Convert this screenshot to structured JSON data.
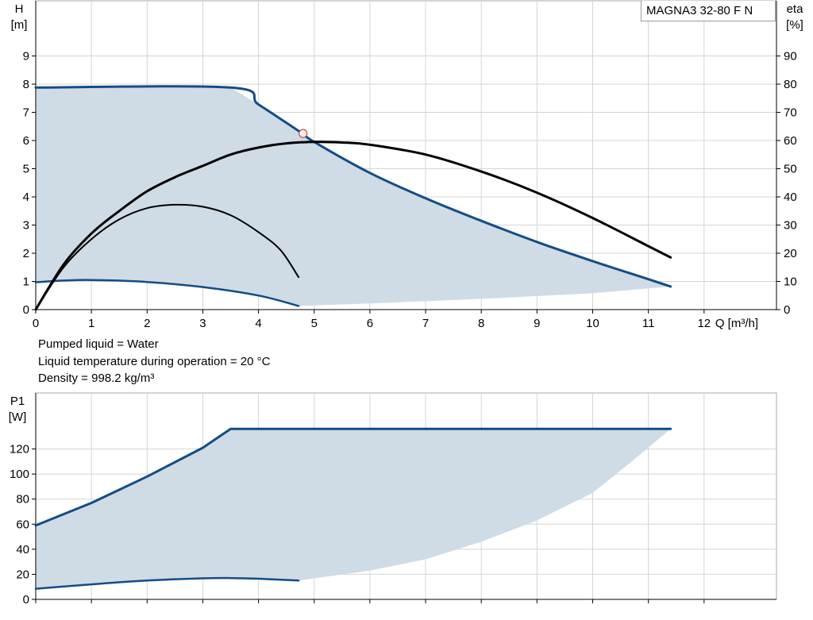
{
  "model": "MAGNA3 32-80 F N",
  "notes": [
    "Pumped liquid = Water",
    "Liquid temperature during operation = 20 °C",
    "Density = 998.2 kg/m³"
  ],
  "colors": {
    "curve": "#124d86",
    "area": "#cfdbe5",
    "eta": "#000000",
    "grid": "#d4d4d4",
    "frame": "#a8a8a8",
    "duty_marker": "#e23a3a"
  },
  "chart_data": [
    {
      "type": "line",
      "name": "head-chart",
      "xlabel": "Q [m³/h]",
      "ylabel": "H\n[m]",
      "y2label": "eta\n[%]",
      "x_ticks": [
        0,
        1,
        2,
        3,
        4,
        5,
        6,
        7,
        8,
        9,
        10,
        11,
        12
      ],
      "y_ticks": [
        0,
        1,
        2,
        3,
        4,
        5,
        6,
        7,
        8,
        9
      ],
      "y2_ticks": [
        0,
        10,
        20,
        30,
        40,
        50,
        60,
        70,
        80,
        90
      ],
      "xlim": [
        0,
        13.3
      ],
      "ylim": [
        0,
        10
      ],
      "y2lim": [
        0,
        100
      ],
      "grid": true,
      "series": [
        {
          "axis": "left",
          "width": 3,
          "points": [
            [
              0,
              7.88
            ],
            [
              3.5,
              7.88
            ],
            [
              4,
              7.28
            ],
            [
              4.75,
              6.3
            ],
            [
              5,
              5.95
            ],
            [
              6,
              4.85
            ],
            [
              7,
              3.95
            ],
            [
              8,
              3.15
            ],
            [
              9,
              2.4
            ],
            [
              10,
              1.72
            ],
            [
              11,
              1.08
            ],
            [
              11.4,
              0.82
            ]
          ]
        },
        {
          "axis": "left",
          "width": 2.5,
          "points": [
            [
              0,
              0.97
            ],
            [
              0.5,
              1.03
            ],
            [
              1,
              1.05
            ],
            [
              2,
              0.98
            ],
            [
              3,
              0.8
            ],
            [
              4,
              0.5
            ],
            [
              4.72,
              0.13
            ]
          ]
        },
        {
          "axis": "right",
          "width": 3,
          "points": [
            [
              0,
              0
            ],
            [
              0.5,
              16
            ],
            [
              1,
              27
            ],
            [
              1.5,
              35
            ],
            [
              2,
              42
            ],
            [
              2.5,
              47
            ],
            [
              3,
              51
            ],
            [
              3.5,
              55
            ],
            [
              4,
              57.5
            ],
            [
              4.5,
              59
            ],
            [
              5,
              59.5
            ],
            [
              5.5,
              59.3
            ],
            [
              6,
              58.5
            ],
            [
              7,
              55
            ],
            [
              8,
              49
            ],
            [
              9,
              41.5
            ],
            [
              10,
              32.5
            ],
            [
              11,
              22.5
            ],
            [
              11.4,
              18.5
            ]
          ]
        },
        {
          "axis": "right",
          "width": 2,
          "points": [
            [
              0,
              0
            ],
            [
              0.5,
              15
            ],
            [
              1,
              25
            ],
            [
              1.5,
              32
            ],
            [
              2,
              36
            ],
            [
              2.5,
              37.2
            ],
            [
              3,
              36.5
            ],
            [
              3.5,
              33.5
            ],
            [
              4,
              27.5
            ],
            [
              4.4,
              21
            ],
            [
              4.72,
              11.5
            ]
          ]
        }
      ],
      "operating_area": {
        "upper": [
          [
            0,
            7.88
          ],
          [
            3.5,
            7.88
          ],
          [
            4,
            7.28
          ],
          [
            4.75,
            6.3
          ],
          [
            5,
            5.95
          ],
          [
            6,
            4.85
          ],
          [
            7,
            3.95
          ],
          [
            8,
            3.15
          ],
          [
            9,
            2.4
          ],
          [
            10,
            1.72
          ],
          [
            11,
            1.08
          ],
          [
            11.4,
            0.82
          ]
        ],
        "lower": [
          [
            0,
            0.97
          ],
          [
            0.5,
            1.03
          ],
          [
            1,
            1.05
          ],
          [
            2,
            0.98
          ],
          [
            3,
            0.8
          ],
          [
            4,
            0.5
          ],
          [
            4.72,
            0.13
          ],
          [
            6,
            0.22
          ],
          [
            8,
            0.38
          ],
          [
            10,
            0.58
          ],
          [
            11.4,
            0.82
          ]
        ]
      },
      "duty_point": [
        4.8,
        6.25
      ]
    },
    {
      "type": "line",
      "name": "power-chart",
      "ylabel": "P1\n[W]",
      "x_ticks": [
        0,
        1,
        2,
        3,
        4,
        5,
        6,
        7,
        8,
        9,
        10,
        11,
        12
      ],
      "y_ticks": [
        0,
        20,
        40,
        60,
        80,
        100,
        120
      ],
      "xlim": [
        0,
        13.3
      ],
      "ylim": [
        0,
        140
      ],
      "grid": true,
      "series": [
        {
          "axis": "left",
          "width": 3,
          "points": [
            [
              0,
              59
            ],
            [
              1,
              77
            ],
            [
              2,
              98
            ],
            [
              3,
              121
            ],
            [
              3.5,
              136
            ],
            [
              11.4,
              136
            ]
          ]
        },
        {
          "axis": "left",
          "width": 2.5,
          "points": [
            [
              0,
              8.5
            ],
            [
              1,
              12
            ],
            [
              2,
              15
            ],
            [
              3,
              16.8
            ],
            [
              3.5,
              17
            ],
            [
              4,
              16.5
            ],
            [
              4.72,
              15
            ]
          ]
        }
      ],
      "operating_area": {
        "upper": [
          [
            0,
            59
          ],
          [
            1,
            77
          ],
          [
            2,
            98
          ],
          [
            3,
            121
          ],
          [
            3.5,
            136
          ],
          [
            11.4,
            136
          ]
        ],
        "lower": [
          [
            0,
            8.5
          ],
          [
            1,
            12
          ],
          [
            2,
            15
          ],
          [
            3,
            16.8
          ],
          [
            3.5,
            17
          ],
          [
            4,
            16.5
          ],
          [
            4.72,
            15
          ],
          [
            6,
            23
          ],
          [
            7,
            32
          ],
          [
            8,
            46
          ],
          [
            9,
            63
          ],
          [
            10,
            85
          ],
          [
            10.7,
            110
          ],
          [
            11.4,
            136
          ]
        ]
      }
    }
  ]
}
